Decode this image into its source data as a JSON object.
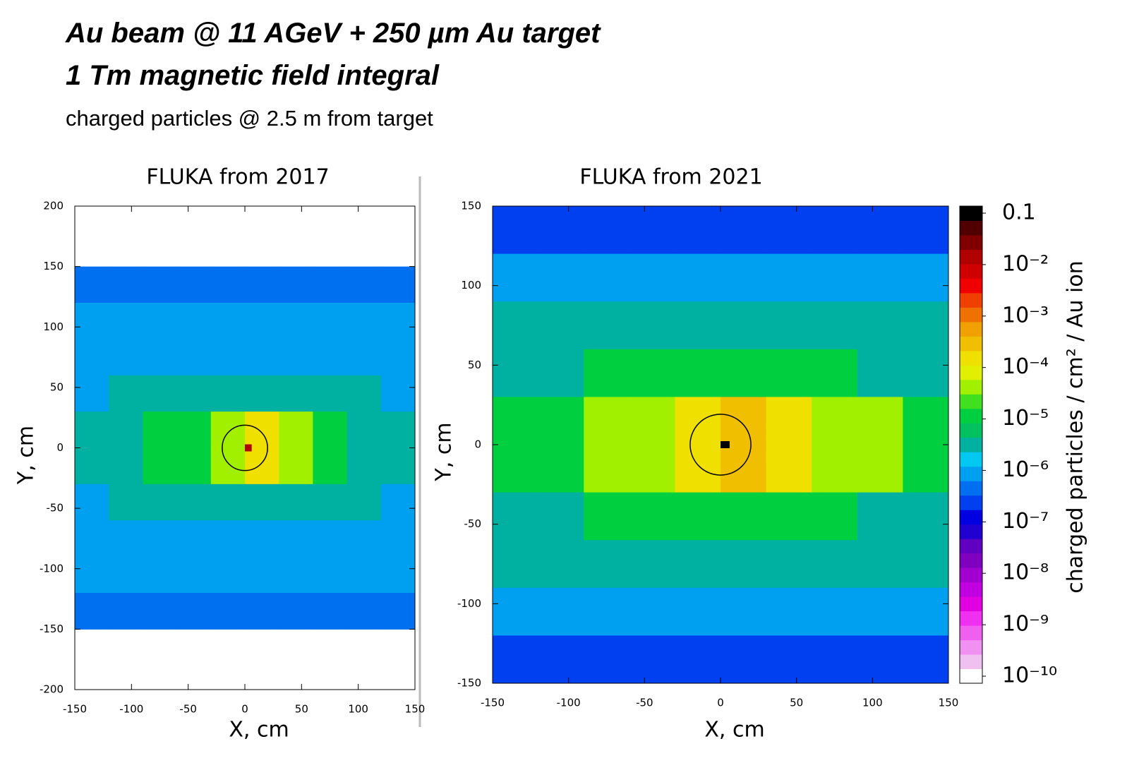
{
  "header": {
    "title": [
      "Au beam @ 11 AGeV + 250 µm Au target",
      "1 Tm magnetic field integral"
    ],
    "subtitle": "charged particles @ 2.5 m from target"
  },
  "chart_data": [
    {
      "type": "heatmap",
      "title": "FLUKA from 2017",
      "xlabel": "X, cm",
      "ylabel": "Y, cm",
      "x": [
        -135,
        -105,
        -75,
        -45,
        -15,
        15,
        45,
        75,
        105,
        135
      ],
      "y": [
        135,
        105,
        75,
        45,
        15,
        -15,
        -45,
        -75,
        -105,
        -135
      ],
      "values": [
        [
          6e-07,
          6e-07,
          6e-07,
          6e-07,
          6e-07,
          6e-07,
          6e-07,
          6e-07,
          6e-07,
          6e-07
        ],
        [
          1e-06,
          1e-06,
          1e-06,
          1e-06,
          1e-06,
          1e-06,
          1e-06,
          1e-06,
          1e-06,
          1e-06
        ],
        [
          1e-06,
          1e-06,
          1e-06,
          1e-06,
          1e-06,
          1e-06,
          1e-06,
          1e-06,
          1e-06,
          1e-06
        ],
        [
          1e-06,
          3e-06,
          3e-06,
          3e-06,
          3e-06,
          3e-06,
          3e-06,
          3e-06,
          3e-06,
          1e-06
        ],
        [
          3e-06,
          3e-06,
          1e-05,
          1e-05,
          5e-05,
          0.0001,
          5e-05,
          1e-05,
          3e-06,
          3e-06
        ],
        [
          3e-06,
          3e-06,
          1e-05,
          1e-05,
          5e-05,
          0.0001,
          5e-05,
          1e-05,
          3e-06,
          3e-06
        ],
        [
          1e-06,
          3e-06,
          3e-06,
          3e-06,
          3e-06,
          3e-06,
          3e-06,
          3e-06,
          3e-06,
          1e-06
        ],
        [
          1e-06,
          1e-06,
          1e-06,
          1e-06,
          1e-06,
          1e-06,
          1e-06,
          1e-06,
          1e-06,
          1e-06
        ],
        [
          1e-06,
          1e-06,
          1e-06,
          1e-06,
          1e-06,
          1e-06,
          1e-06,
          1e-06,
          1e-06,
          1e-06
        ],
        [
          6e-07,
          6e-07,
          6e-07,
          6e-07,
          6e-07,
          6e-07,
          6e-07,
          6e-07,
          6e-07,
          6e-07
        ]
      ],
      "peak": {
        "x": 3,
        "y": 0,
        "value": 0.01
      },
      "xlim": [
        -150,
        150
      ],
      "ylim": [
        -200,
        200
      ],
      "xticks": [
        -150,
        -100,
        -50,
        0,
        50,
        100,
        150
      ],
      "yticks": [
        -200,
        -150,
        -100,
        -50,
        0,
        50,
        100,
        150,
        200
      ],
      "log_scale": true,
      "zlim": [
        1e-10,
        0.1
      ]
    },
    {
      "type": "heatmap",
      "title": "FLUKA from 2021",
      "xlabel": "X, cm",
      "ylabel": "Y, cm",
      "x": [
        -135,
        -105,
        -75,
        -45,
        -15,
        15,
        45,
        75,
        105,
        135
      ],
      "y": [
        135,
        105,
        75,
        45,
        15,
        -15,
        -45,
        -75,
        -105,
        -135
      ],
      "values": [
        [
          2e-07,
          2e-07,
          2e-07,
          2e-07,
          2e-07,
          2e-07,
          2e-07,
          2e-07,
          2e-07,
          2e-07
        ],
        [
          1e-06,
          1e-06,
          1e-06,
          1e-06,
          1e-06,
          1e-06,
          1e-06,
          1e-06,
          1e-06,
          1e-06
        ],
        [
          3e-06,
          3e-06,
          3e-06,
          3e-06,
          3e-06,
          3e-06,
          3e-06,
          3e-06,
          3e-06,
          3e-06
        ],
        [
          3e-06,
          3e-06,
          1e-05,
          1e-05,
          1e-05,
          1e-05,
          1e-05,
          1e-05,
          3e-06,
          3e-06
        ],
        [
          1e-05,
          1e-05,
          3e-05,
          5e-05,
          0.0001,
          0.0003,
          0.0001,
          5e-05,
          3e-05,
          1e-05
        ],
        [
          1e-05,
          1e-05,
          3e-05,
          5e-05,
          0.0001,
          0.0002,
          0.0001,
          5e-05,
          3e-05,
          1e-05
        ],
        [
          3e-06,
          3e-06,
          1e-05,
          1e-05,
          1e-05,
          1e-05,
          1e-05,
          1e-05,
          3e-06,
          3e-06
        ],
        [
          3e-06,
          3e-06,
          3e-06,
          3e-06,
          3e-06,
          3e-06,
          3e-06,
          3e-06,
          3e-06,
          3e-06
        ],
        [
          1e-06,
          1e-06,
          1e-06,
          1e-06,
          1e-06,
          1e-06,
          1e-06,
          1e-06,
          1e-06,
          1e-06
        ],
        [
          2e-07,
          2e-07,
          2e-07,
          2e-07,
          2e-07,
          2e-07,
          2e-07,
          2e-07,
          2e-07,
          2e-07
        ]
      ],
      "peak": {
        "x": 3,
        "y": 0,
        "value": 0.1
      },
      "xlim": [
        -150,
        150
      ],
      "ylim": [
        -150,
        150
      ],
      "xticks": [
        -150,
        -100,
        -50,
        0,
        50,
        100,
        150
      ],
      "yticks": [
        -150,
        -100,
        -50,
        0,
        50,
        100,
        150
      ],
      "log_scale": true,
      "zlim": [
        1e-10,
        0.1
      ],
      "colorbar": {
        "label": "charged particles / cm² / Au ion",
        "ticks": [
          0.1,
          {
            "value": 0.01,
            "label": "10⁻²"
          },
          {
            "value": 0.001,
            "label": "10⁻³"
          },
          {
            "value": 0.0001,
            "label": "10⁻⁴"
          },
          {
            "value": 1e-05,
            "label": "10⁻⁵"
          },
          {
            "value": 1e-06,
            "label": "10⁻⁶"
          },
          {
            "value": 1e-07,
            "label": "10⁻⁷"
          },
          {
            "value": 1e-08,
            "label": "10⁻⁸"
          },
          {
            "value": 1e-09,
            "label": "10⁻⁹"
          },
          {
            "value": 1e-10,
            "label": "10⁻¹⁰"
          }
        ]
      },
      "colors": [
        "#ffffff",
        "#f0c0f0",
        "#f090f0",
        "#f060f0",
        "#f030f0",
        "#e000e0",
        "#c000e0",
        "#a000d0",
        "#8000c0",
        "#6000c0",
        "#2000d0",
        "#0000e0",
        "#0040f0",
        "#0070f0",
        "#00a0f0",
        "#00c8f0",
        "#00b0a0",
        "#00c060",
        "#00d040",
        "#40e020",
        "#a0f000",
        "#e0f000",
        "#f0e000",
        "#f0c000",
        "#f0a000",
        "#f07000",
        "#f04000",
        "#f00000",
        "#d00000",
        "#b00000",
        "#800000",
        "#500000",
        "#000000"
      ]
    }
  ]
}
